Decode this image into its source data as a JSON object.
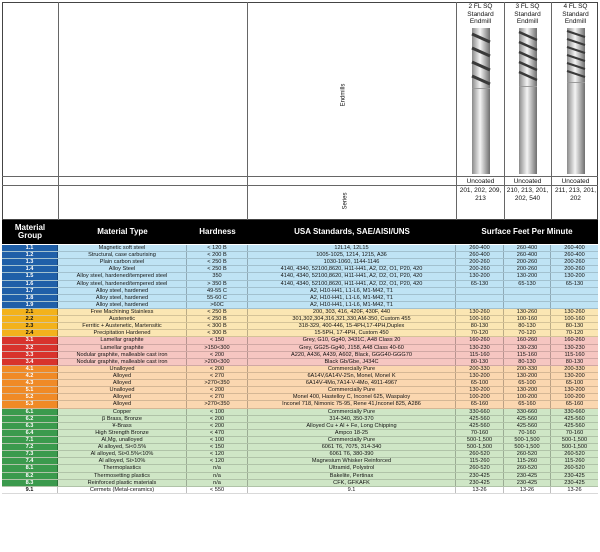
{
  "tools": [
    {
      "name": "2 FL SQ Standard Endmill",
      "name_lines": [
        "2 FL SQ",
        "Standard",
        "Endmill"
      ],
      "coating": "Uncoated",
      "series": "201, 202, 209, 213"
    },
    {
      "name": "3 FL SQ Standard Endmill",
      "name_lines": [
        "3 FL SQ",
        "Standard",
        "Endmill"
      ],
      "coating": "Uncoated",
      "series": "210, 213, 201, 202, 540"
    },
    {
      "name": "4 FL SQ Standard Endmill",
      "name_lines": [
        "4 FL SQ",
        "Standard",
        "Endmill"
      ],
      "coating": "Uncoated",
      "series": "211, 213, 201, 202"
    }
  ],
  "labels": {
    "endmills": "Endmills",
    "series": "Series"
  },
  "header": {
    "material_group": "Material Group",
    "material_type": "Material Type",
    "hardness": "Hardness",
    "standards": "USA Standards, SAE/AISI/UNS",
    "sfm": "Surface Feet Per Minute"
  },
  "colors": {
    "blue": "#1f5fa8",
    "yellow": "#f3b21c",
    "red": "#d8332c",
    "orange": "#f08a26",
    "green": "#3b9a4d"
  },
  "rows": [
    {
      "group": "1.1",
      "band": "blue",
      "type": "Magnetic soft steel",
      "hardness": "< 120 B",
      "standards": "12L14, 12L15",
      "s1": "260-400",
      "s2": "260-400",
      "s3": "260-400"
    },
    {
      "group": "1.2",
      "band": "blue",
      "type": "Structural, case carburising",
      "hardness": "< 200 B",
      "standards": "1005-1025, 1214, 1215, A36",
      "s1": "260-400",
      "s2": "260-400",
      "s3": "260-400"
    },
    {
      "group": "1.3",
      "band": "blue",
      "type": "Plain carbon steel",
      "hardness": "< 250 B",
      "standards": "1030-1060, 1144-1146",
      "s1": "200-260",
      "s2": "200-260",
      "s3": "200-260"
    },
    {
      "group": "1.4",
      "band": "blue",
      "type": "Alloy Steel",
      "hardness": "< 250 B",
      "standards": "4140, 4340, 52100,8620, H11-H41, A2, D2, O1, P20, 420",
      "s1": "200-260",
      "s2": "200-260",
      "s3": "200-260"
    },
    {
      "group": "1.5",
      "band": "blue",
      "type": "Alloy steel, hardened/tempered steel",
      "hardness": "350",
      "standards": "4140, 4340, 52100,8620, H11-H41, A2, D2, O1, P20, 420",
      "s1": "130-200",
      "s2": "130-200",
      "s3": "130-200"
    },
    {
      "group": "1.6",
      "band": "blue",
      "type": "Alloy steel, hardened/tempered steel",
      "hardness": "> 350 B",
      "standards": "4140, 4340, 52100,8620, H11-H41, A2, D2, O1, P20, 420",
      "s1": "65-130",
      "s2": "65-130",
      "s3": "65-130"
    },
    {
      "group": "1.7",
      "band": "blue",
      "type": "Alloy steel, hardened",
      "hardness": "49-55 C",
      "standards": "A2, H10-H41, L1-L6, M1-M42, T1",
      "s1": "",
      "s2": "",
      "s3": ""
    },
    {
      "group": "1.8",
      "band": "blue",
      "type": "Alloy steel, hardened",
      "hardness": "55-60 C",
      "standards": "A2, H10-H41, L1-L6, M1-M42, T1",
      "s1": "",
      "s2": "",
      "s3": ""
    },
    {
      "group": "1.9",
      "band": "blue",
      "type": "Alloy steel, hardened",
      "hardness": ">60C",
      "standards": "A2, H10-H41, L1-L6, M1-M42, T1",
      "s1": "",
      "s2": "",
      "s3": ""
    },
    {
      "group": "2.1",
      "band": "yellow",
      "type": "Free Machining Stainless",
      "hardness": "< 250 B",
      "standards": "200, 303, 416, 420F, 430F, 440",
      "s1": "130-260",
      "s2": "130-260",
      "s3": "130-260"
    },
    {
      "group": "2.2",
      "band": "yellow",
      "type": "Austenetic",
      "hardness": "< 250 B",
      "standards": "301,302,304,316,321,330,AM-350, Custom 455",
      "s1": "100-160",
      "s2": "100-160",
      "s3": "100-160"
    },
    {
      "group": "2.3",
      "band": "yellow",
      "type": "Ferritic + Austenetic, Martensitic",
      "hardness": "< 300 B",
      "standards": "318-329, 400-446, 15-4PH,17-4PH,Duplex",
      "s1": "80-130",
      "s2": "80-130",
      "s3": "80-130"
    },
    {
      "group": "2.4",
      "band": "yellow",
      "type": "Precipitation Hardened",
      "hardness": "< 300 B",
      "standards": "15-5PH, 17-4PH, Custom 450",
      "s1": "70-120",
      "s2": "70-120",
      "s3": "70-120"
    },
    {
      "group": "3.1",
      "band": "red",
      "type": "Lamellar graphite",
      "hardness": "< 150",
      "standards": "Grey, G10, Gg40, 3431C, A48 Class 20",
      "s1": "160-260",
      "s2": "160-260",
      "s3": "160-260"
    },
    {
      "group": "3.2",
      "band": "red",
      "type": "Lamellar graphite",
      "hardness": ">150<300",
      "standards": "Grey, GG25-Gg40, J158, A48 Class 40-60",
      "s1": "130-230",
      "s2": "130-230",
      "s3": "130-230"
    },
    {
      "group": "3.3",
      "band": "red",
      "type": "Nodular graphite, malleable cast iron",
      "hardness": "< 200",
      "standards": "A220, A436, A439, A602, Black, GGG40-GGG70",
      "s1": "115-160",
      "s2": "115-160",
      "s3": "115-160"
    },
    {
      "group": "3.4",
      "band": "red",
      "type": "Nodular graphite, malleable cast iron",
      "hardness": ">200<300",
      "standards": "Black Gb/Gbe, J434C",
      "s1": "80-130",
      "s2": "80-130",
      "s3": "80-130"
    },
    {
      "group": "4.1",
      "band": "orange",
      "type": "Unalloyed",
      "hardness": "< 200",
      "standards": "Commercially Pure",
      "s1": "200-330",
      "s2": "200-330",
      "s3": "200-330"
    },
    {
      "group": "4.2",
      "band": "orange",
      "type": "Alloyed",
      "hardness": "< 270",
      "standards": "6A14V,6A14V-2Sn, Monel, Monel K",
      "s1": "130-200",
      "s2": "130-200",
      "s3": "130-200"
    },
    {
      "group": "4.3",
      "band": "orange",
      "type": "Alloyed",
      "hardness": ">270<350",
      "standards": "6A14V-4Mo,7A14-V-4Mo, 4911-4967",
      "s1": "65-100",
      "s2": "65-100",
      "s3": "65-100"
    },
    {
      "group": "5.1",
      "band": "orange",
      "type": "Unalloyed",
      "hardness": "< 200",
      "standards": "Commercially Pure",
      "s1": "130-200",
      "s2": "130-200",
      "s3": "130-200"
    },
    {
      "group": "5.2",
      "band": "orange",
      "type": "Alloyed",
      "hardness": "< 270",
      "standards": "Monel 400, Hastelloy C, Inconel 625, Waspaloy",
      "s1": "100-200",
      "s2": "100-200",
      "s3": "100-200"
    },
    {
      "group": "5.3",
      "band": "orange",
      "type": "Alloyed",
      "hardness": ">270<350",
      "standards": "Inconel 718, Nimonic 75-95, Rene 41,Inconel 825, A286",
      "s1": "65-160",
      "s2": "65-160",
      "s3": "65-160"
    },
    {
      "group": "6.1",
      "band": "green",
      "type": "Copper",
      "hardness": "< 100",
      "standards": "Commercially Pure",
      "s1": "330-660",
      "s2": "330-660",
      "s3": "330-660"
    },
    {
      "group": "6.2",
      "band": "green",
      "type": "β Brass, Bronze",
      "hardness": "< 200",
      "standards": "314-340, 350-370",
      "s1": "425-560",
      "s2": "425-560",
      "s3": "425-560"
    },
    {
      "group": "6.3",
      "band": "green",
      "type": "¥-Brass",
      "hardness": "< 200",
      "standards": "Alloyed Cu + Al + Fe, Long Chipping",
      "s1": "425-560",
      "s2": "425-560",
      "s3": "425-560"
    },
    {
      "group": "6.4",
      "band": "green",
      "type": "High Strength Bronze",
      "hardness": "< 470",
      "standards": "Ampco 18-25",
      "s1": "70-160",
      "s2": "70-160",
      "s3": "70-160"
    },
    {
      "group": "7.1",
      "band": "green",
      "type": "Al,Mg, unalloyed",
      "hardness": "< 100",
      "standards": "Commercially Pure",
      "s1": "500-1,500",
      "s2": "500-1,500",
      "s3": "500-1,500"
    },
    {
      "group": "7.2",
      "band": "green",
      "type": "Al alloyed, Si<0.5%",
      "hardness": "< 150",
      "standards": "6061 T6, 7075, 314-340",
      "s1": "500-1,500",
      "s2": "500-1,500",
      "s3": "500-1,500"
    },
    {
      "group": "7.3",
      "band": "green",
      "type": "Al alloyed, Si>0.5%<10%",
      "hardness": "< 120",
      "standards": "6061 T6, 380-390",
      "s1": "260-520",
      "s2": "260-520",
      "s3": "260-520"
    },
    {
      "group": "7.4",
      "band": "green",
      "type": "Al alloyed, Si>10%",
      "hardness": "< 120",
      "standards": "Magnesium Whisker Reinforced",
      "s1": "115-260",
      "s2": "115-260",
      "s3": "115-260"
    },
    {
      "group": "8.1",
      "band": "green",
      "type": "Thermoplastics",
      "hardness": "n/a",
      "standards": "Ultramid, Polystrol",
      "s1": "260-520",
      "s2": "260-520",
      "s3": "260-520"
    },
    {
      "group": "8.2",
      "band": "green",
      "type": "Thermosetting plastics",
      "hardness": "n/a",
      "standards": "Bakelite, Pertinax",
      "s1": "230-425",
      "s2": "230-425",
      "s3": "230-425"
    },
    {
      "group": "8.3",
      "band": "green",
      "type": "Reinforced plastic materials",
      "hardness": "n/a",
      "standards": "CFK, GFKAFK",
      "s1": "230-425",
      "s2": "230-425",
      "s3": "230-425"
    },
    {
      "group": "9.1",
      "band": "white",
      "type": "Cermets (Metal-ceramics)",
      "hardness": "< 550",
      "standards": "9.1",
      "s1": "13-26",
      "s2": "13-26",
      "s3": "13-26"
    }
  ]
}
